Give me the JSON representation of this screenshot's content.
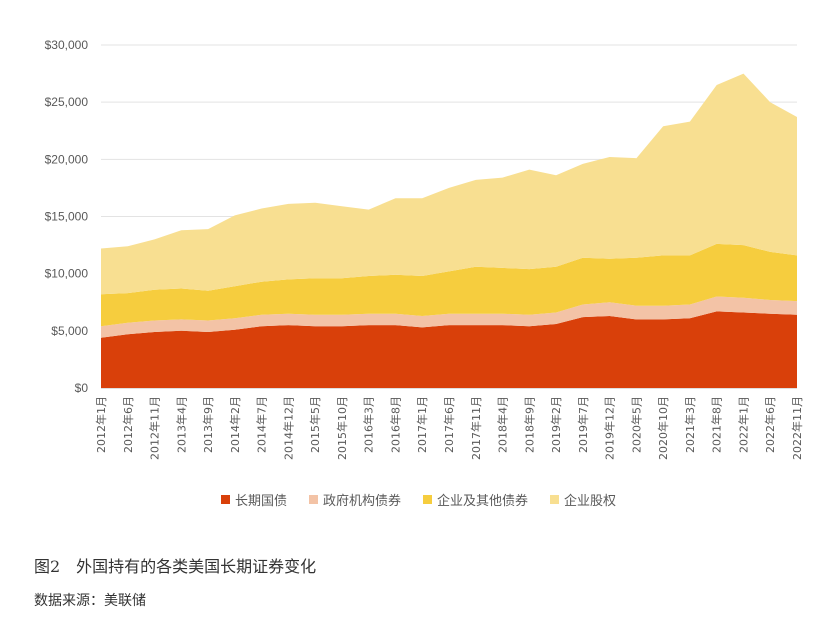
{
  "chart_data": {
    "type": "area",
    "stacked": true,
    "x": [
      "2012年1月",
      "2012年6月",
      "2012年11月",
      "2013年4月",
      "2013年9月",
      "2014年2月",
      "2014年7月",
      "2014年12月",
      "2015年5月",
      "2015年10月",
      "2016年3月",
      "2016年8月",
      "2017年1月",
      "2017年6月",
      "2017年11月",
      "2018年4月",
      "2018年9月",
      "2019年2月",
      "2019年7月",
      "2019年12月",
      "2020年5月",
      "2020年10月",
      "2021年3月",
      "2021年8月",
      "2022年1月",
      "2022年6月",
      "2022年11月"
    ],
    "yticks": [
      "$0",
      "$5,000",
      "$10,000",
      "$15,000",
      "$20,000",
      "$25,000",
      "$30,000"
    ],
    "ylim": [
      0,
      30000
    ],
    "grid": true,
    "legend_position": "bottom",
    "series": [
      {
        "name": "长期国债",
        "color": "#d9400a",
        "values": [
          4400,
          4700,
          4900,
          5000,
          4900,
          5100,
          5400,
          5500,
          5400,
          5400,
          5500,
          5500,
          5300,
          5500,
          5500,
          5500,
          5400,
          5600,
          6200,
          6300,
          6000,
          6000,
          6100,
          6700,
          6600,
          6500,
          6400
        ]
      },
      {
        "name": "政府机构债券",
        "color": "#f3c3a6",
        "values": [
          1000,
          1000,
          1000,
          1000,
          1000,
          1000,
          1000,
          1000,
          1000,
          1000,
          1000,
          1000,
          1000,
          1000,
          1000,
          1000,
          1000,
          1000,
          1100,
          1200,
          1200,
          1200,
          1200,
          1300,
          1300,
          1200,
          1200
        ]
      },
      {
        "name": "企业及其他债券",
        "color": "#f6cd3e",
        "values": [
          2800,
          2600,
          2700,
          2700,
          2600,
          2800,
          2900,
          3000,
          3200,
          3200,
          3300,
          3400,
          3500,
          3700,
          4100,
          4000,
          4000,
          4000,
          4100,
          3800,
          4200,
          4400,
          4300,
          4600,
          4600,
          4200,
          4000
        ]
      },
      {
        "name": "企业股权",
        "color": "#f8df91",
        "values": [
          4000,
          4100,
          4400,
          5100,
          5400,
          6200,
          6400,
          6600,
          6600,
          6300,
          5800,
          6700,
          6800,
          7300,
          7600,
          7900,
          8700,
          8000,
          8200,
          8900,
          8700,
          11300,
          11700,
          13900,
          15000,
          13100,
          12100
        ]
      }
    ]
  },
  "legend": [
    "长期国债",
    "政府机构债券",
    "企业及其他债券",
    "企业股权"
  ],
  "caption": "图2　外国持有的各类美国长期证券变化",
  "source": "数据来源：美联储"
}
